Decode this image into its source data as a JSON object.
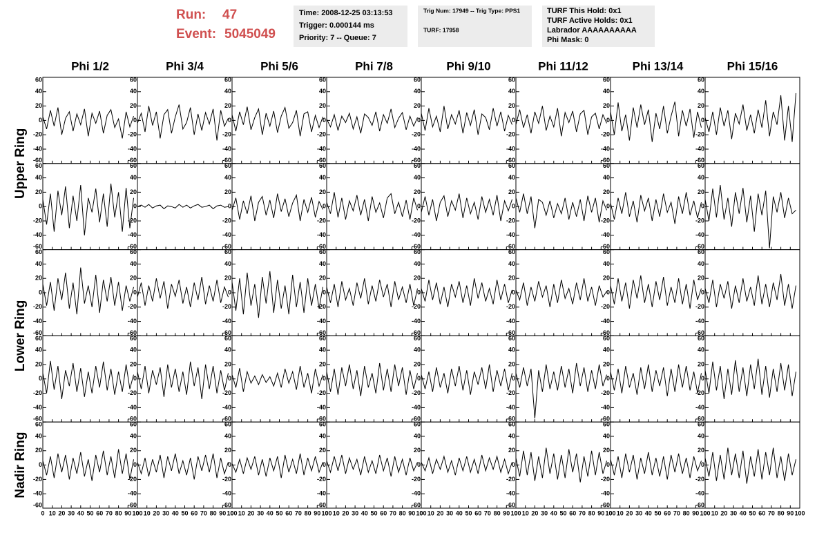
{
  "header": {
    "run_label": "Run:",
    "run": "47",
    "event_label": "Event:",
    "event": "5045049",
    "time_box": [
      "Time: 2008-12-25 03:13:53",
      "Trigger: 0.000144 ms",
      "Priority: 7 -- Queue: 7"
    ],
    "trig_box": [
      "Trig Num: 17949 -- Trig Type: PPS1",
      "TURF: 17958"
    ],
    "turf_box": [
      "TURF This Hold: 0x1",
      "TURF Active Holds: 0x1",
      "Labrador AAAAAAAAAA",
      "Phi Mask: 0"
    ]
  },
  "columns": [
    "Phi 1/2",
    "Phi 3/4",
    "Phi 5/6",
    "Phi 7/8",
    "Phi 9/10",
    "Phi 11/12",
    "Phi 13/14",
    "Phi 15/16"
  ],
  "rings": [
    "Upper Ring",
    "Lower Ring",
    "Nadir Ring"
  ],
  "chart_data": {
    "type": "line",
    "color": "#000000",
    "xlim": [
      0,
      100
    ],
    "xticks": [
      0,
      10,
      20,
      30,
      40,
      50,
      60,
      70,
      80,
      90,
      100
    ],
    "ylim": [
      -60,
      60
    ],
    "yticks": [
      -60,
      -40,
      -20,
      0,
      20,
      40,
      60
    ],
    "x": [
      0,
      4,
      8,
      12,
      16,
      20,
      24,
      28,
      32,
      36,
      40,
      44,
      48,
      52,
      56,
      60,
      64,
      68,
      72,
      76,
      80,
      84,
      88,
      92,
      96
    ],
    "series": [
      {
        "values": [
          5,
          -12,
          14,
          -8,
          18,
          -20,
          3,
          12,
          -15,
          9,
          -6,
          16,
          -22,
          10,
          -4,
          13,
          -18,
          7,
          15,
          -10,
          2,
          -25,
          12,
          -9,
          6
        ]
      },
      {
        "values": [
          -4,
          10,
          -16,
          20,
          -7,
          12,
          -25,
          8,
          15,
          -18,
          5,
          22,
          -12,
          -3,
          18,
          -20,
          9,
          -14,
          11,
          -5,
          16,
          -28,
          14,
          -8,
          3
        ]
      },
      {
        "values": [
          8,
          -15,
          12,
          -6,
          19,
          -13,
          4,
          16,
          -20,
          10,
          -8,
          13,
          -17,
          6,
          18,
          -11,
          -3,
          14,
          -22,
          9,
          12,
          -16,
          7,
          -10,
          5
        ]
      },
      {
        "values": [
          2,
          -9,
          8,
          -14,
          6,
          -3,
          10,
          -12,
          5,
          -18,
          9,
          4,
          -7,
          12,
          -15,
          8,
          -4,
          16,
          -10,
          3,
          11,
          -13,
          6,
          -8,
          4
        ]
      },
      {
        "values": [
          10,
          -14,
          17,
          -9,
          6,
          -16,
          20,
          -12,
          8,
          -5,
          14,
          -18,
          11,
          -7,
          15,
          -20,
          9,
          4,
          -13,
          17,
          -8,
          12,
          -15,
          7,
          -6
        ]
      },
      {
        "values": [
          -6,
          15,
          -10,
          8,
          -18,
          12,
          -4,
          20,
          -14,
          6,
          -9,
          17,
          -22,
          11,
          -3,
          13,
          -16,
          9,
          14,
          -20,
          5,
          10,
          -12,
          8,
          -4
        ]
      },
      {
        "values": [
          12,
          -20,
          25,
          -15,
          8,
          -28,
          18,
          -10,
          22,
          -6,
          15,
          -30,
          10,
          -12,
          20,
          -18,
          6,
          26,
          -22,
          14,
          -8,
          16,
          -24,
          12,
          -10
        ]
      },
      {
        "values": [
          4,
          -16,
          12,
          -20,
          18,
          -8,
          14,
          -26,
          10,
          -5,
          22,
          -14,
          8,
          -18,
          15,
          -10,
          28,
          -22,
          12,
          -6,
          35,
          -28,
          20,
          -30,
          38
        ]
      },
      {
        "values": [
          10,
          -25,
          18,
          -35,
          22,
          -12,
          28,
          -30,
          15,
          -20,
          30,
          -40,
          12,
          -8,
          25,
          -22,
          18,
          -28,
          32,
          -15,
          20,
          -35,
          26,
          -30,
          12
        ]
      },
      {
        "values": [
          0,
          2,
          -1,
          3,
          -2,
          1,
          2,
          -3,
          1,
          0,
          -2,
          3,
          -1,
          2,
          -2,
          1,
          3,
          -1,
          0,
          2,
          -3,
          1,
          2,
          -1,
          0
        ]
      },
      {
        "values": [
          -5,
          12,
          -18,
          8,
          -10,
          15,
          -20,
          6,
          14,
          -12,
          9,
          -16,
          18,
          -7,
          11,
          -14,
          5,
          16,
          -20,
          10,
          -8,
          13,
          -15,
          7,
          -4
        ]
      },
      {
        "values": [
          6,
          -10,
          20,
          -15,
          12,
          -18,
          8,
          -6,
          16,
          -12,
          10,
          -20,
          14,
          -8,
          5,
          -16,
          12,
          18,
          -10,
          6,
          -14,
          9,
          -18,
          12,
          -5
        ]
      },
      {
        "values": [
          -8,
          14,
          -12,
          10,
          -20,
          6,
          15,
          -14,
          8,
          -5,
          18,
          -16,
          12,
          -10,
          6,
          -18,
          14,
          -8,
          10,
          -12,
          16,
          -20,
          8,
          -6,
          10
        ]
      },
      {
        "values": [
          12,
          -8,
          18,
          -10,
          14,
          -30,
          10,
          6,
          -12,
          8,
          -16,
          4,
          -10,
          12,
          -18,
          6,
          -14,
          10,
          -20,
          15,
          -8,
          12,
          -22,
          8,
          -5
        ]
      },
      {
        "values": [
          5,
          -18,
          12,
          -10,
          20,
          -14,
          8,
          -22,
          16,
          -6,
          12,
          -20,
          10,
          -14,
          18,
          -8,
          6,
          -24,
          14,
          -10,
          20,
          -12,
          8,
          -16,
          6
        ]
      },
      {
        "values": [
          10,
          -20,
          25,
          -15,
          30,
          -18,
          12,
          -28,
          20,
          -10,
          26,
          -22,
          15,
          -35,
          18,
          -12,
          22,
          -58,
          14,
          -8,
          20,
          -16,
          12,
          -10,
          -5
        ]
      },
      {
        "values": [
          12,
          -18,
          15,
          -25,
          20,
          -10,
          28,
          -22,
          14,
          -30,
          35,
          -15,
          10,
          -20,
          25,
          -28,
          18,
          -12,
          22,
          -18,
          15,
          -25,
          10,
          -12,
          8
        ]
      },
      {
        "values": [
          -6,
          14,
          -18,
          10,
          -12,
          20,
          -8,
          16,
          -22,
          12,
          -5,
          18,
          -15,
          8,
          -20,
          14,
          -10,
          22,
          -16,
          10,
          -12,
          18,
          -14,
          8,
          -6
        ]
      },
      {
        "values": [
          15,
          -25,
          20,
          -30,
          28,
          -18,
          12,
          -35,
          22,
          -15,
          30,
          -28,
          18,
          -22,
          10,
          -30,
          25,
          -20,
          15,
          -28,
          20,
          -18,
          12,
          -22,
          8
        ]
      },
      {
        "values": [
          8,
          -14,
          12,
          -20,
          16,
          -10,
          6,
          -18,
          14,
          -8,
          20,
          -16,
          10,
          -12,
          18,
          -6,
          12,
          -20,
          16,
          -10,
          8,
          -14,
          12,
          -18,
          6
        ]
      },
      {
        "values": [
          6,
          -12,
          18,
          -10,
          14,
          -16,
          8,
          -20,
          12,
          -6,
          16,
          -14,
          10,
          -18,
          20,
          -8,
          14,
          -12,
          6,
          -16,
          18,
          -10,
          12,
          -14,
          4
        ]
      },
      {
        "values": [
          4,
          -10,
          14,
          -18,
          8,
          -12,
          16,
          -6,
          10,
          -20,
          12,
          -14,
          18,
          -8,
          6,
          -16,
          14,
          -10,
          20,
          -12,
          8,
          -18,
          10,
          -6,
          2
        ]
      },
      {
        "values": [
          10,
          -16,
          20,
          -12,
          14,
          -22,
          18,
          -8,
          24,
          -14,
          12,
          -20,
          16,
          -10,
          22,
          -18,
          8,
          -14,
          20,
          -16,
          12,
          -22,
          18,
          -10,
          6
        ]
      },
      {
        "values": [
          6,
          -14,
          18,
          -20,
          12,
          -8,
          16,
          -22,
          10,
          -14,
          20,
          -12,
          8,
          -18,
          24,
          -16,
          12,
          -20,
          14,
          -10,
          26,
          -18,
          12,
          -22,
          10
        ]
      },
      {
        "values": [
          8,
          -20,
          25,
          -15,
          18,
          -28,
          12,
          -10,
          22,
          -18,
          15,
          -25,
          10,
          -20,
          18,
          -12,
          24,
          -16,
          14,
          -22,
          10,
          -18,
          20,
          -14,
          6
        ]
      },
      {
        "values": [
          10,
          -14,
          18,
          -20,
          12,
          -8,
          16,
          -25,
          20,
          -12,
          14,
          -18,
          10,
          -22,
          24,
          -10,
          16,
          -28,
          20,
          -14,
          18,
          -20,
          12,
          -16,
          8
        ]
      },
      {
        "values": [
          6,
          -12,
          15,
          -18,
          10,
          -6,
          4,
          -8,
          6,
          -5,
          3,
          -10,
          8,
          -12,
          14,
          -6,
          10,
          -15,
          18,
          -12,
          8,
          -20,
          14,
          -10,
          6
        ]
      },
      {
        "values": [
          10,
          -18,
          14,
          -22,
          16,
          -10,
          20,
          -14,
          12,
          -24,
          18,
          -12,
          8,
          -20,
          22,
          -16,
          14,
          -18,
          20,
          -10,
          16,
          -22,
          12,
          -14,
          8
        ]
      },
      {
        "values": [
          6,
          -14,
          10,
          -18,
          16,
          -12,
          8,
          -20,
          14,
          -10,
          18,
          -16,
          12,
          -22,
          10,
          -8,
          16,
          -14,
          20,
          -18,
          12,
          -10,
          14,
          -16,
          8
        ]
      },
      {
        "values": [
          8,
          -12,
          16,
          -10,
          14,
          -55,
          12,
          -18,
          20,
          -14,
          10,
          -16,
          18,
          -12,
          14,
          -20,
          22,
          -10,
          16,
          -18,
          12,
          -14,
          20,
          -10,
          6
        ]
      },
      {
        "values": [
          10,
          -16,
          14,
          -20,
          18,
          -12,
          8,
          -22,
          16,
          -14,
          20,
          -18,
          12,
          -10,
          16,
          -24,
          14,
          -18,
          20,
          -12,
          18,
          -16,
          10,
          -20,
          8
        ]
      },
      {
        "values": [
          12,
          -20,
          24,
          -16,
          18,
          -28,
          14,
          -22,
          26,
          -18,
          16,
          -24,
          20,
          -14,
          28,
          -22,
          18,
          -26,
          14,
          -18,
          22,
          -16,
          20,
          -24,
          10
        ]
      },
      {
        "values": [
          6,
          -14,
          12,
          -18,
          16,
          -10,
          14,
          -20,
          10,
          -12,
          18,
          -16,
          8,
          -22,
          14,
          -10,
          20,
          -14,
          12,
          -18,
          22,
          -12,
          16,
          -20,
          8
        ]
      },
      {
        "values": [
          4,
          -12,
          10,
          -16,
          8,
          -10,
          14,
          -18,
          12,
          -8,
          16,
          -12,
          6,
          -14,
          10,
          -20,
          12,
          -8,
          14,
          -10,
          16,
          -18,
          10,
          -12,
          4
        ]
      },
      {
        "values": [
          2,
          -10,
          8,
          -12,
          10,
          -6,
          12,
          -14,
          8,
          -16,
          10,
          -8,
          12,
          -18,
          14,
          -10,
          8,
          -12,
          16,
          -14,
          10,
          -8,
          12,
          -10,
          4
        ]
      },
      {
        "values": [
          6,
          -10,
          12,
          -8,
          14,
          -12,
          10,
          -6,
          8,
          -14,
          12,
          -10,
          6,
          -12,
          14,
          -8,
          10,
          -16,
          12,
          -10,
          8,
          -14,
          10,
          -8,
          4
        ]
      },
      {
        "values": [
          4,
          -8,
          10,
          -12,
          8,
          -6,
          12,
          -10,
          6,
          -14,
          10,
          -8,
          12,
          -10,
          8,
          -12,
          14,
          -8,
          10,
          -6,
          12,
          -10,
          8,
          -12,
          4
        ]
      },
      {
        "values": [
          10,
          -16,
          20,
          -14,
          18,
          -22,
          12,
          -18,
          24,
          -12,
          16,
          -20,
          14,
          -18,
          22,
          -10,
          16,
          -24,
          12,
          -16,
          20,
          -14,
          18,
          -12,
          6
        ]
      },
      {
        "values": [
          8,
          -14,
          12,
          -18,
          16,
          -10,
          14,
          -20,
          10,
          -12,
          18,
          -14,
          10,
          -16,
          12,
          -20,
          14,
          -10,
          16,
          -12,
          10,
          -18,
          12,
          -8,
          6
        ]
      },
      {
        "values": [
          10,
          -16,
          18,
          -22,
          14,
          -20,
          24,
          -14,
          16,
          -18,
          20,
          -26,
          12,
          -16,
          22,
          -20,
          18,
          -14,
          24,
          -18,
          12,
          -22,
          16,
          -14,
          8
        ]
      }
    ]
  }
}
